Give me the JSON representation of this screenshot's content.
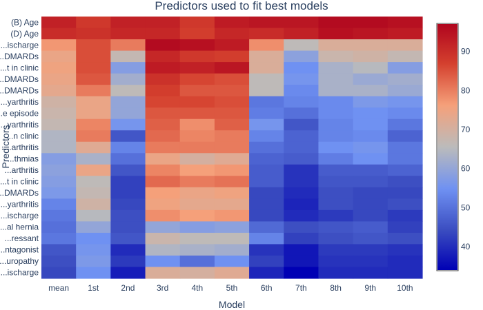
{
  "chart_data": {
    "type": "heatmap",
    "title": "Predictors used to fit best models",
    "xlabel": "Model",
    "ylabel": "Predictors",
    "x": [
      "mean",
      "1st",
      "2nd",
      "3rd",
      "4th",
      "5th",
      "6th",
      "7th",
      "8th",
      "9th",
      "10th"
    ],
    "y": [
      "(B) Age",
      "(D) Age",
      "...ischarge",
      "...DMARDs",
      "...t in clinic",
      "...DMARDs",
      "...DMARDs",
      "...yarthritis",
      "...e episode",
      "...yarthritis",
      "...n clinic",
      "...arthritis",
      "...thmias",
      "...arthritis",
      "...t in clinic",
      "...DMARDs",
      "...yarthritis",
      "...ischarge",
      "...al hernia",
      "...ressant",
      "...ntagonist",
      "...uropathy",
      "...ischarge"
    ],
    "z": [
      [
        92,
        88,
        92,
        92,
        88,
        93,
        94,
        94,
        96,
        96,
        95
      ],
      [
        90,
        89,
        91,
        91,
        87,
        91,
        90,
        92,
        95,
        94,
        93
      ],
      [
        77,
        85,
        80,
        96,
        95,
        93,
        78,
        66,
        71,
        71,
        71
      ],
      [
        74,
        85,
        67,
        91,
        88,
        87,
        71,
        59,
        68,
        69,
        67
      ],
      [
        75,
        85,
        58,
        93,
        92,
        94,
        71,
        55,
        63,
        65,
        58
      ],
      [
        74,
        84,
        62,
        89,
        86,
        85,
        66,
        56,
        63,
        61,
        62
      ],
      [
        73,
        80,
        66,
        87,
        84,
        84,
        66,
        54,
        63,
        63,
        61
      ],
      [
        69,
        74,
        60,
        86,
        86,
        85,
        51,
        53,
        54,
        57,
        56
      ],
      [
        68,
        74,
        60,
        84,
        84,
        84,
        52,
        50,
        54,
        55,
        54
      ],
      [
        67,
        79,
        56,
        83,
        78,
        83,
        56,
        46,
        53,
        55,
        51
      ],
      [
        64,
        80,
        46,
        82,
        79,
        80,
        53,
        48,
        53,
        54,
        48
      ],
      [
        64,
        72,
        53,
        80,
        80,
        80,
        50,
        48,
        55,
        56,
        51
      ],
      [
        58,
        63,
        50,
        74,
        70,
        72,
        48,
        47,
        52,
        55,
        51
      ],
      [
        59,
        74,
        46,
        79,
        76,
        77,
        47,
        41,
        47,
        47,
        48
      ],
      [
        58,
        66,
        43,
        82,
        80,
        81,
        47,
        41,
        46,
        46,
        45
      ],
      [
        57,
        67,
        43,
        76,
        74,
        75,
        44,
        40,
        45,
        44,
        44
      ],
      [
        53,
        69,
        44,
        75,
        73,
        73,
        44,
        39,
        45,
        44,
        45
      ],
      [
        51,
        65,
        45,
        78,
        76,
        77,
        44,
        40,
        42,
        44,
        42
      ],
      [
        50,
        60,
        45,
        60,
        58,
        59,
        49,
        45,
        46,
        47,
        43
      ],
      [
        51,
        55,
        46,
        68,
        66,
        66,
        53,
        43,
        45,
        46,
        45
      ],
      [
        46,
        56,
        40,
        64,
        63,
        62,
        41,
        37,
        42,
        42,
        41
      ],
      [
        45,
        57,
        42,
        55,
        50,
        55,
        43,
        37,
        41,
        41,
        40
      ],
      [
        44,
        55,
        38,
        71,
        70,
        72,
        39,
        34,
        40,
        40,
        40
      ]
    ],
    "zrange": [
      34,
      97
    ],
    "colorbar_ticks": [
      40,
      50,
      60,
      70,
      80,
      90
    ],
    "colorscale": [
      "#0000b4",
      "#3a4cc0",
      "#6f91f2",
      "#bbbbbb",
      "#f5a07a",
      "#d4402e",
      "#b0051e"
    ],
    "grid": false,
    "legend": "colorbar-right"
  }
}
